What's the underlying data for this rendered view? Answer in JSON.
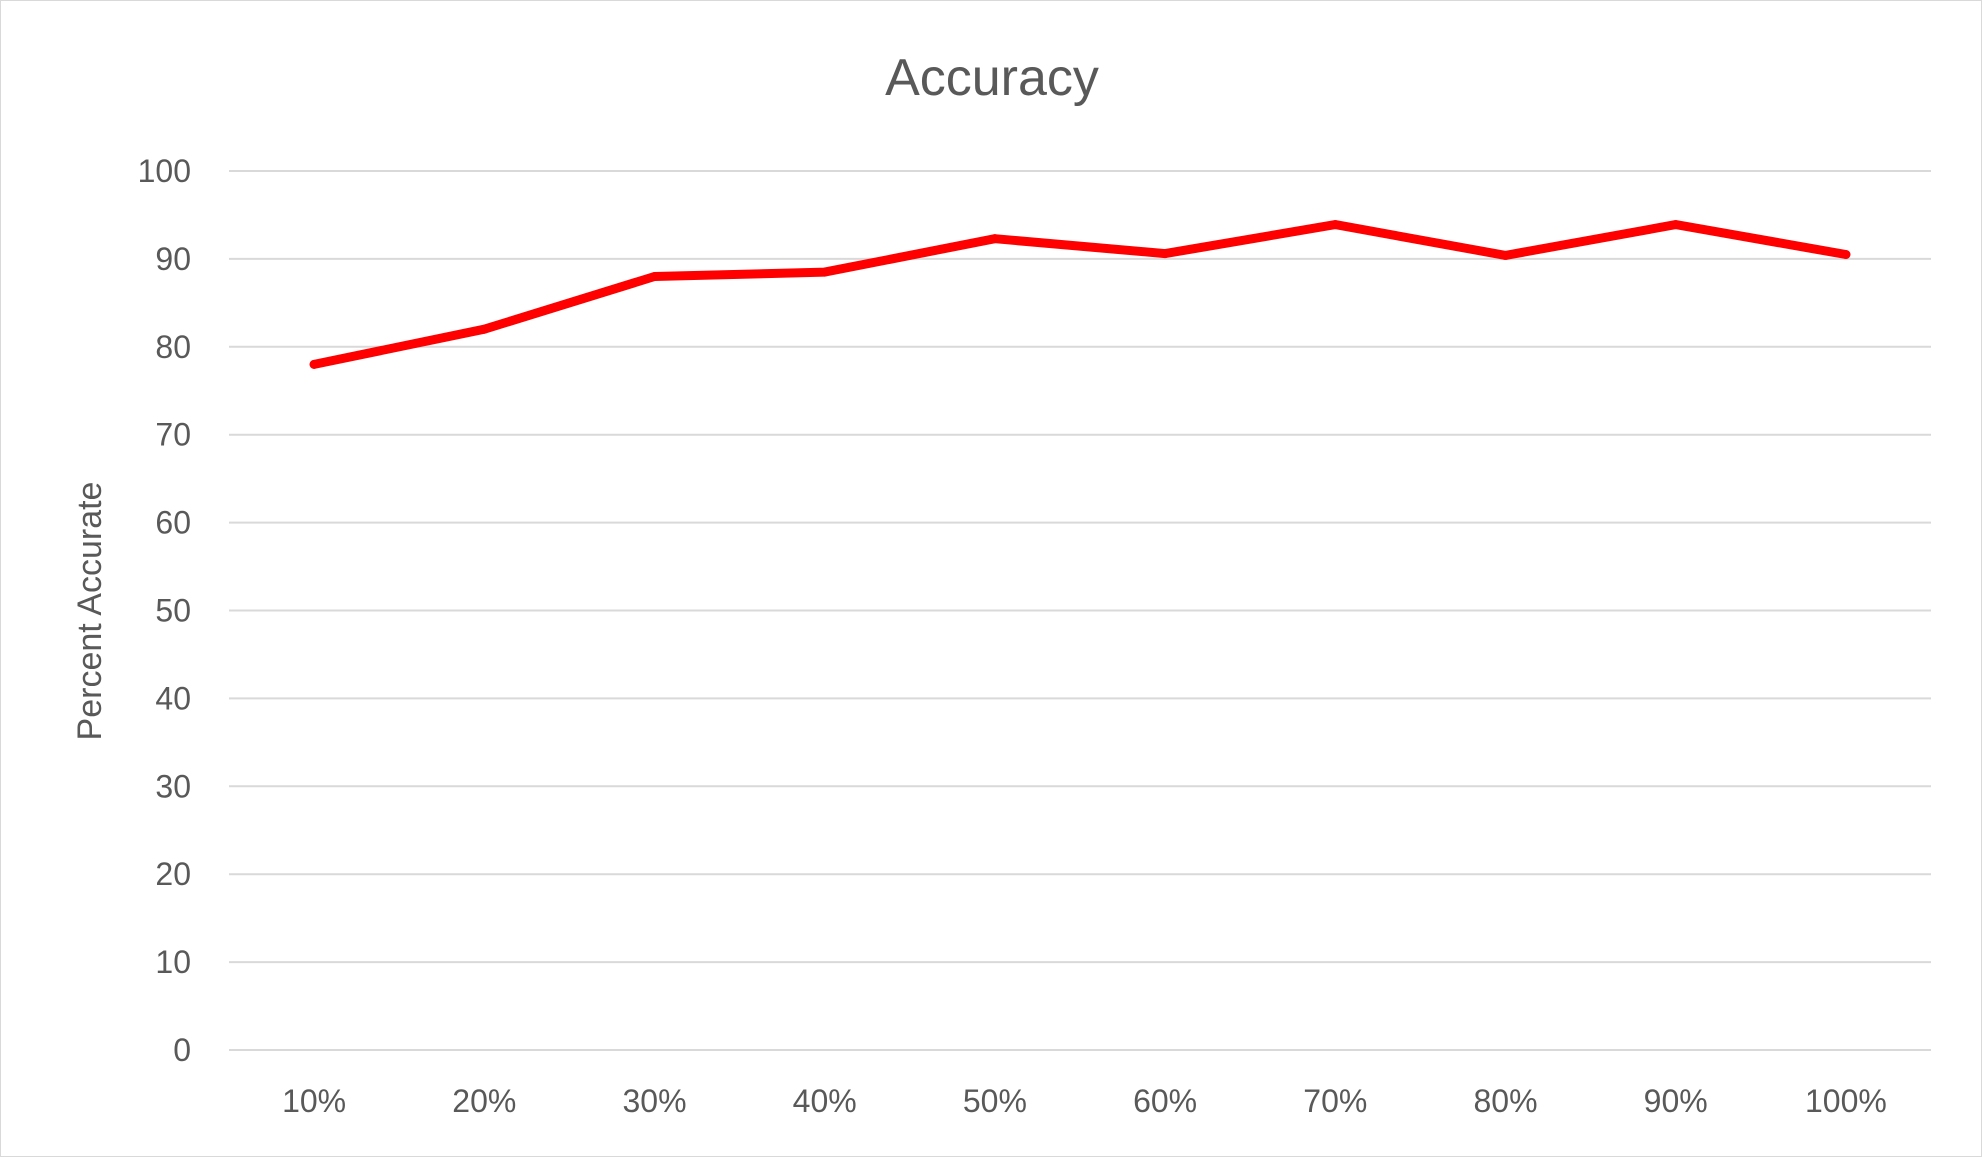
{
  "chart_data": {
    "type": "line",
    "title": "Accuracy",
    "xlabel": "",
    "ylabel": "Percent Accurate",
    "categories": [
      "10%",
      "20%",
      "30%",
      "40%",
      "50%",
      "60%",
      "70%",
      "80%",
      "90%",
      "100%"
    ],
    "series": [
      {
        "values": [
          78,
          82,
          88,
          88.5,
          92.3,
          90.6,
          93.9,
          90.4,
          93.9,
          90.5
        ],
        "color": "#ff0000"
      }
    ],
    "ylim": [
      0,
      100
    ],
    "yticks": [
      "0",
      "10",
      "20",
      "30",
      "40",
      "50",
      "60",
      "70",
      "80",
      "90",
      "100"
    ],
    "grid": true,
    "legend": "none"
  }
}
